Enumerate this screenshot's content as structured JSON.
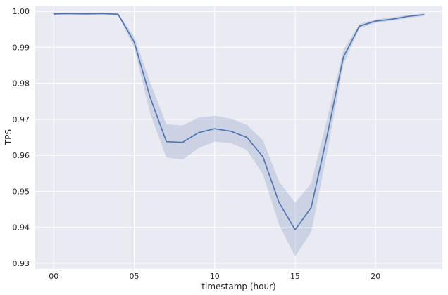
{
  "chart_data": {
    "type": "line",
    "xlabel": "timestamp (hour)",
    "ylabel": "TPS",
    "xlim": [
      -1.15,
      24.15
    ],
    "ylim": [
      0.9284,
      1.0016
    ],
    "x_ticks": [
      {
        "value": 0,
        "label": "00"
      },
      {
        "value": 5,
        "label": "05"
      },
      {
        "value": 10,
        "label": "10"
      },
      {
        "value": 15,
        "label": "15"
      },
      {
        "value": 20,
        "label": "20"
      }
    ],
    "y_ticks": [
      {
        "value": 0.93,
        "label": "0.93"
      },
      {
        "value": 0.94,
        "label": "0.94"
      },
      {
        "value": 0.95,
        "label": "0.95"
      },
      {
        "value": 0.96,
        "label": "0.96"
      },
      {
        "value": 0.97,
        "label": "0.97"
      },
      {
        "value": 0.98,
        "label": "0.98"
      },
      {
        "value": 0.99,
        "label": "0.99"
      },
      {
        "value": 1.0,
        "label": "1.00"
      }
    ],
    "grid": true,
    "background": "#eaeaf2",
    "grid_color": "#ffffff",
    "line_color": "#4c72b0",
    "band_color": "#4c72b0",
    "band_opacity": 0.2,
    "series": [
      {
        "x": [
          0,
          1,
          2,
          3,
          4,
          5,
          6,
          7,
          8,
          9,
          10,
          11,
          12,
          13,
          14,
          15,
          16,
          17,
          18,
          19,
          20,
          21,
          22,
          23
        ],
        "values": [
          0.9993,
          0.9994,
          0.9993,
          0.9994,
          0.9992,
          0.9915,
          0.976,
          0.9638,
          0.9636,
          0.9663,
          0.9674,
          0.9667,
          0.965,
          0.9596,
          0.9469,
          0.9393,
          0.9455,
          0.9657,
          0.9873,
          0.9959,
          0.9973,
          0.9978,
          0.9986,
          0.9991
        ],
        "lower": [
          0.9989,
          0.999,
          0.999,
          0.9991,
          0.9988,
          0.99,
          0.9715,
          0.9594,
          0.9588,
          0.962,
          0.9638,
          0.9634,
          0.9615,
          0.9547,
          0.9408,
          0.9319,
          0.9387,
          0.961,
          0.9853,
          0.9953,
          0.9968,
          0.9974,
          0.9981,
          0.9987
        ],
        "upper": [
          0.9996,
          0.9997,
          0.9997,
          0.9997,
          0.9995,
          0.993,
          0.9802,
          0.9686,
          0.9683,
          0.9705,
          0.971,
          0.9702,
          0.9685,
          0.9642,
          0.9527,
          0.9468,
          0.9522,
          0.9703,
          0.9893,
          0.9965,
          0.9978,
          0.9983,
          0.999,
          0.9994
        ]
      }
    ]
  }
}
